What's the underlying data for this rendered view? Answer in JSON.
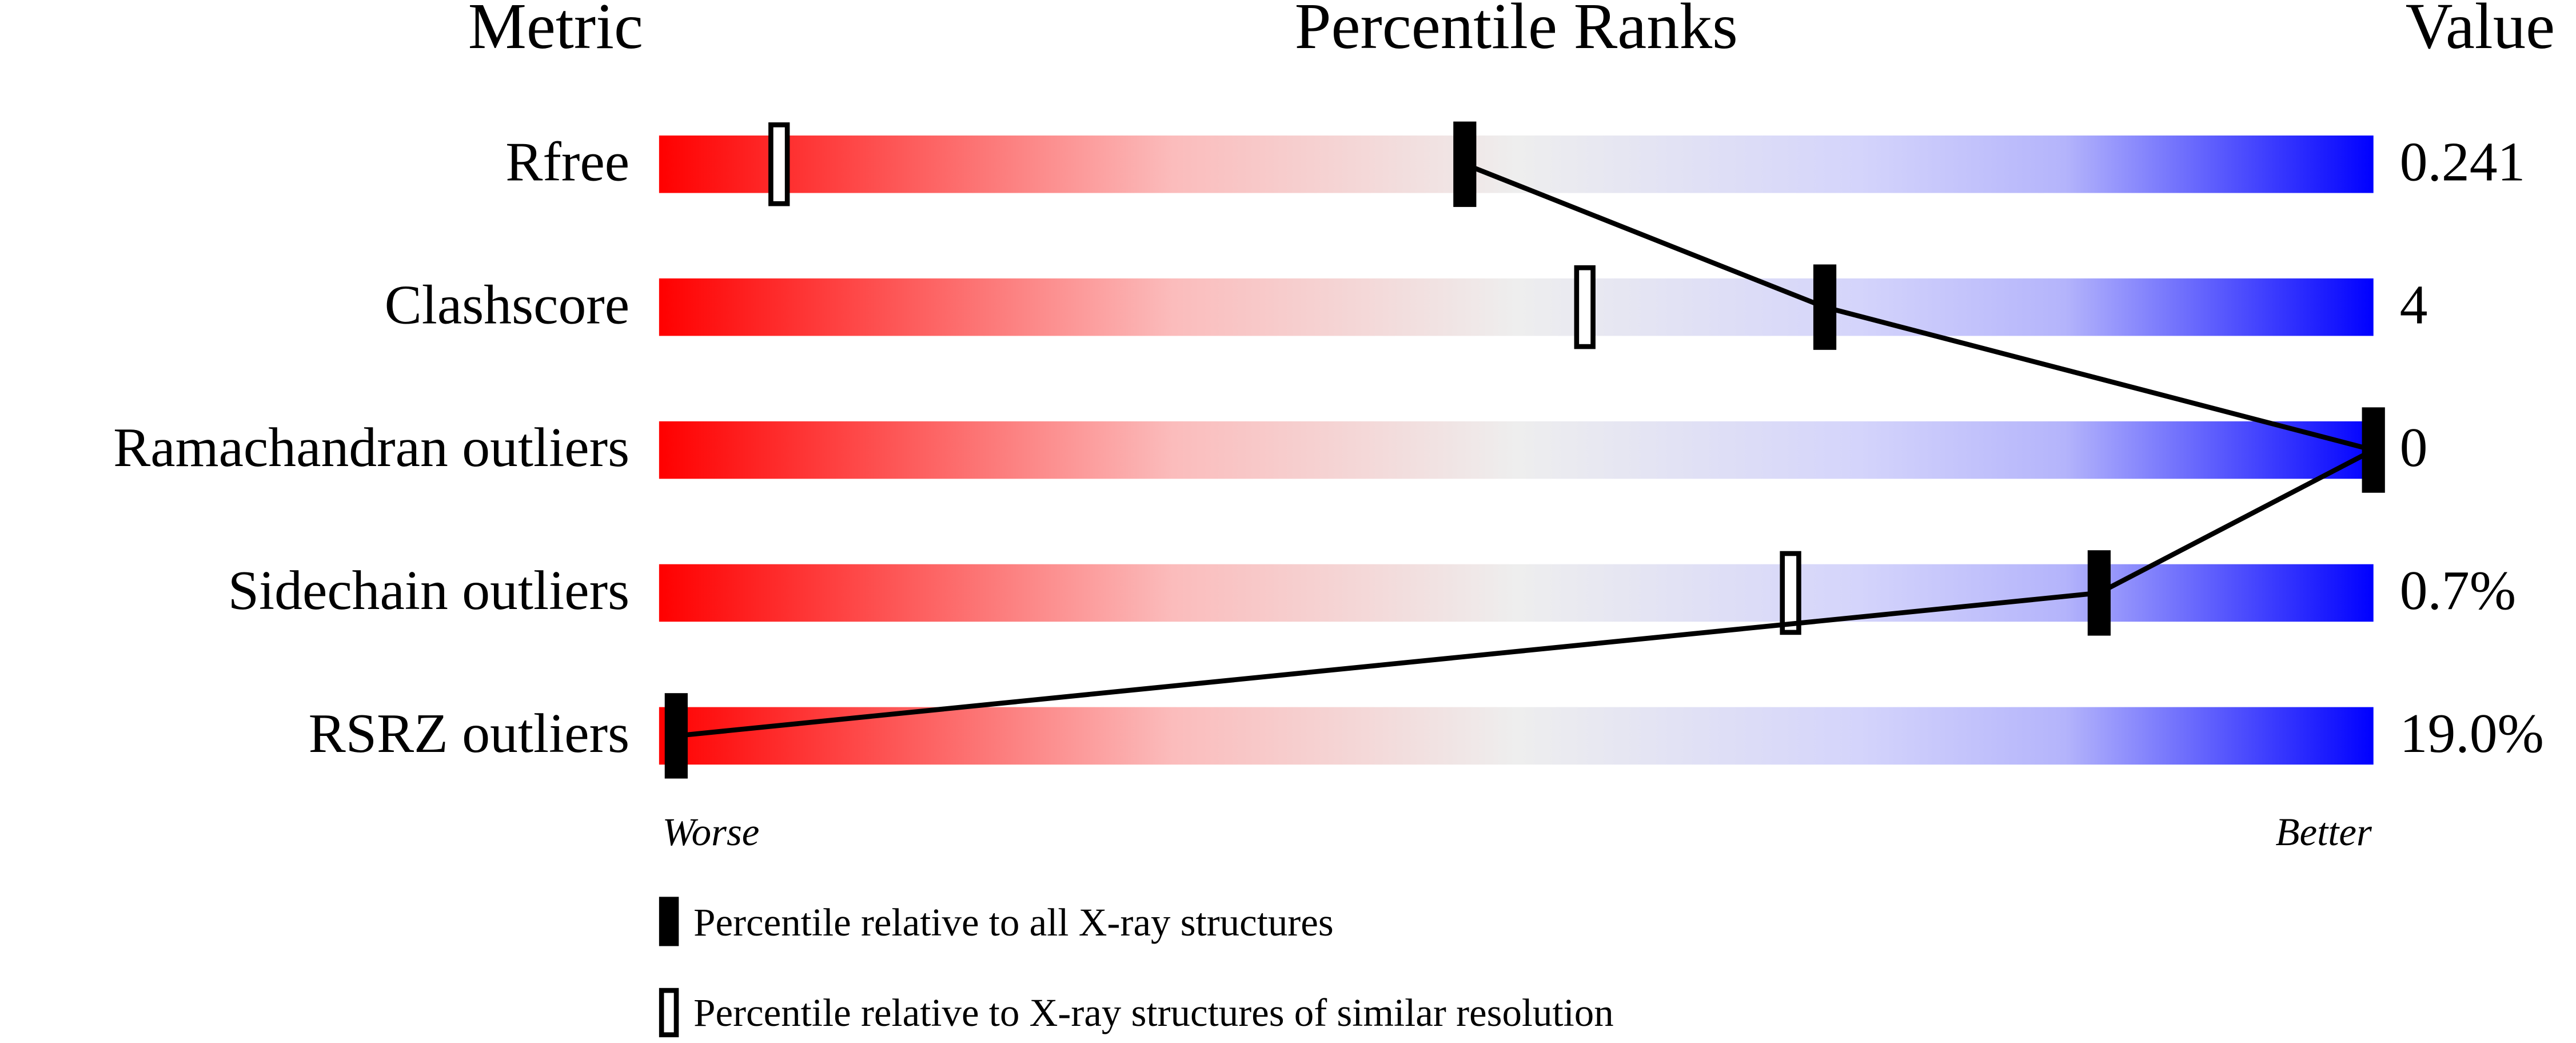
{
  "chart_data": {
    "type": "percentile-slider",
    "headers": {
      "metric": "Metric",
      "ranks": "Percentile Ranks",
      "value": "Value"
    },
    "categories": [
      "Rfree",
      "Clashscore",
      "Ramachandran outliers",
      "Sidechain outliers",
      "RSRZ outliers"
    ],
    "metric_values": [
      "0.241",
      "4",
      "0",
      "0.7%",
      "19.0%"
    ],
    "series": [
      {
        "name": "Percentile relative to all X-ray structures",
        "color": "#000000",
        "values": [
          47,
          68,
          100,
          84,
          1
        ]
      },
      {
        "name": "Percentile relative to X-ray structures of similar resolution",
        "color": "#000000",
        "values": [
          7,
          54,
          null,
          66,
          null
        ]
      }
    ],
    "xlim": [
      0,
      100
    ],
    "scale_labels": {
      "low": "Worse",
      "high": "Better"
    }
  }
}
